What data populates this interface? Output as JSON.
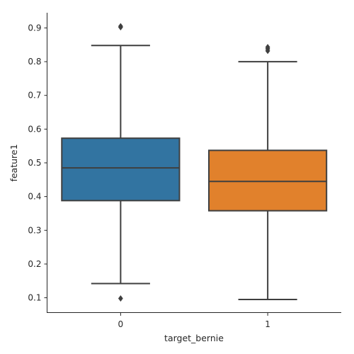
{
  "chart_data": {
    "type": "box",
    "xlabel": "target_bernie",
    "ylabel": "feature1",
    "categories": [
      "0",
      "1"
    ],
    "ylim": [
      0.055,
      0.945
    ],
    "yticks": [
      0.1,
      0.2,
      0.3,
      0.4,
      0.5,
      0.6,
      0.7,
      0.8,
      0.9
    ],
    "ytick_labels": [
      "0.1",
      "0.2",
      "0.3",
      "0.4",
      "0.5",
      "0.6",
      "0.7",
      "0.8",
      "0.9"
    ],
    "grid": false,
    "legend": "none",
    "boxes": [
      {
        "category": "0",
        "whisker_low": 0.142,
        "q1": 0.388,
        "median": 0.485,
        "q3": 0.573,
        "whisker_high": 0.848,
        "outliers": [
          0.098,
          0.902,
          0.905
        ],
        "color": "#3274a1"
      },
      {
        "category": "1",
        "whisker_low": 0.095,
        "q1": 0.358,
        "median": 0.445,
        "q3": 0.537,
        "whisker_high": 0.8,
        "outliers": [
          0.832,
          0.838,
          0.843
        ],
        "color": "#e1812c"
      }
    ]
  }
}
